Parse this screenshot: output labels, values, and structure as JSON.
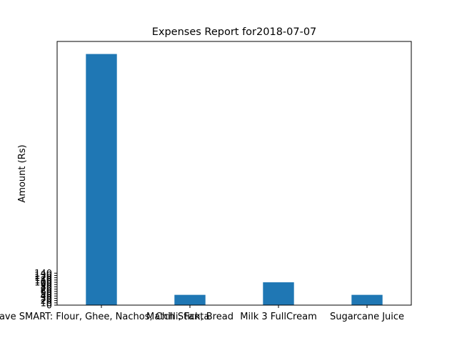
{
  "chart_data": {
    "type": "bar",
    "title": "Expenses Report for2018-07-07",
    "xlabel": "",
    "ylabel": "Amount (Rs)",
    "categories": [
      "Save SMART: Flour, Ghee, Nachos, Chilli, Fanta",
      "Match Stick, Bread",
      "Milk 3 FullCream",
      "Sugarcane Juice"
    ],
    "values": [
      1100,
      45,
      100,
      45
    ],
    "y_ticks": [
      0,
      10,
      20,
      30,
      40,
      50,
      60,
      70,
      80,
      90,
      100,
      110,
      120,
      130,
      140
    ],
    "y_tick_labels": [
      "0",
      "10",
      "20",
      "30",
      "40",
      "50",
      "60",
      "70",
      "80",
      "90",
      "100",
      "110",
      "120",
      "130",
      "140"
    ],
    "ylim": [
      0,
      1155
    ],
    "bar_color": "#1f77b4",
    "grid": false,
    "legend": "none"
  }
}
